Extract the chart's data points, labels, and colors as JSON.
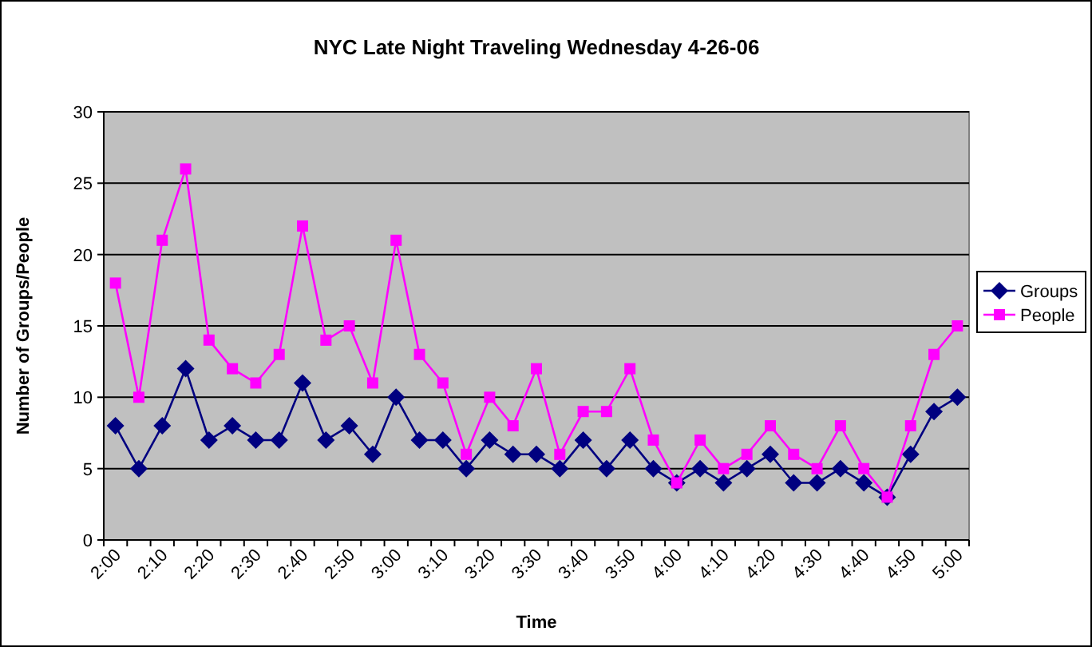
{
  "chart_data": {
    "type": "line",
    "title": "NYC Late Night Traveling Wednesday 4-26-06",
    "xlabel": "Time",
    "ylabel": "Number of Groups/People",
    "categories": [
      "2:00",
      null,
      "2:10",
      null,
      "2:20",
      null,
      "2:30",
      null,
      "2:40",
      null,
      "2:50",
      null,
      "3:00",
      null,
      "3:10",
      null,
      "3:20",
      null,
      "3:30",
      null,
      "3:40",
      null,
      "3:50",
      null,
      "4:00",
      null,
      "4:10",
      null,
      "4:20",
      null,
      "4:30",
      null,
      "4:40",
      null,
      "4:50",
      null,
      "5:00"
    ],
    "series": [
      {
        "name": "Groups",
        "color": "#000080",
        "marker": "diamond",
        "values": [
          8,
          5,
          8,
          12,
          7,
          8,
          7,
          7,
          11,
          7,
          8,
          6,
          10,
          7,
          7,
          5,
          7,
          6,
          6,
          5,
          7,
          5,
          7,
          5,
          4,
          5,
          4,
          5,
          6,
          4,
          4,
          5,
          4,
          3,
          6,
          9,
          10
        ]
      },
      {
        "name": "People",
        "color": "#ff00ff",
        "marker": "square",
        "values": [
          18,
          10,
          21,
          26,
          14,
          12,
          11,
          13,
          22,
          14,
          15,
          11,
          21,
          13,
          11,
          6,
          10,
          8,
          12,
          6,
          9,
          9,
          12,
          7,
          4,
          7,
          5,
          6,
          8,
          6,
          5,
          8,
          5,
          3,
          8,
          13,
          15
        ]
      }
    ],
    "ylim": [
      0,
      30
    ],
    "yticks": [
      0,
      5,
      10,
      15,
      20,
      25,
      30
    ],
    "grid": "y",
    "legend": "right"
  }
}
